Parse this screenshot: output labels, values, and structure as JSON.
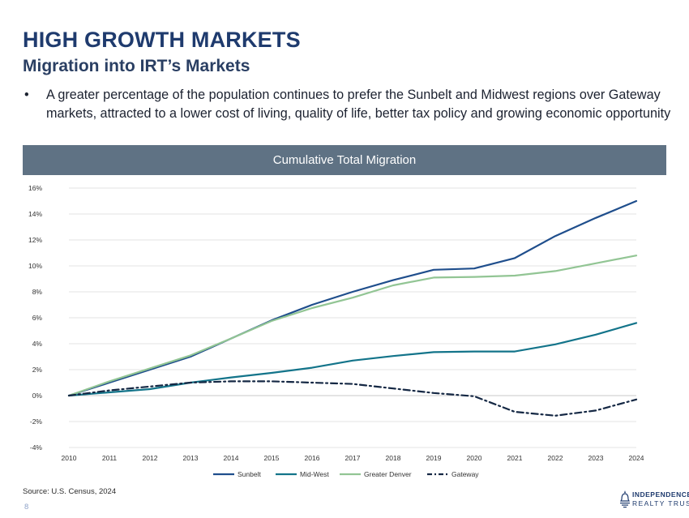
{
  "header": {
    "title": "HIGH GROWTH MARKETS",
    "subtitle": "Migration into IRT’s Markets",
    "bullet_symbol": "•",
    "bullet_text": "A greater percentage of the population continues to prefer the Sunbelt and Midwest regions over Gateway markets, attracted to a lower cost of living, quality of life, better tax policy and growing economic opportunity"
  },
  "chart_data": {
    "type": "line",
    "title": "Cumulative Total Migration",
    "xlabel": "",
    "ylabel": "",
    "categories": [
      "2010",
      "2011",
      "2012",
      "2013",
      "2014",
      "2015",
      "2016",
      "2017",
      "2018",
      "2019",
      "2020",
      "2021",
      "2022",
      "2023",
      "2024"
    ],
    "ylim": [
      -4,
      16
    ],
    "yticks": [
      -4,
      -2,
      0,
      2,
      4,
      6,
      8,
      10,
      12,
      14,
      16
    ],
    "ytick_labels": [
      "-4%",
      "-2%",
      "0%",
      "2%",
      "4%",
      "6%",
      "8%",
      "10%",
      "12%",
      "14%",
      "16%"
    ],
    "grid": true,
    "legend_position": "bottom",
    "series": [
      {
        "name": "Sunbelt",
        "color": "#1f4e8c",
        "dashed": false,
        "values": [
          0,
          1.0,
          2.0,
          3.0,
          4.4,
          5.8,
          7.0,
          8.0,
          8.9,
          9.7,
          9.8,
          10.6,
          12.3,
          13.7,
          15.0
        ]
      },
      {
        "name": "Mid-West",
        "color": "#13748a",
        "dashed": false,
        "values": [
          0,
          0.25,
          0.5,
          1.0,
          1.4,
          1.75,
          2.15,
          2.7,
          3.05,
          3.35,
          3.4,
          3.4,
          3.95,
          4.7,
          5.6
        ]
      },
      {
        "name": "Greater Denver",
        "color": "#92c594",
        "dashed": false,
        "values": [
          0,
          1.1,
          2.1,
          3.1,
          4.4,
          5.75,
          6.75,
          7.55,
          8.5,
          9.1,
          9.15,
          9.25,
          9.6,
          10.2,
          10.8
        ]
      },
      {
        "name": "Gateway",
        "color": "#152844",
        "dashed": true,
        "values": [
          0,
          0.4,
          0.7,
          1.0,
          1.1,
          1.1,
          1.0,
          0.9,
          0.55,
          0.2,
          -0.05,
          -1.25,
          -1.55,
          -1.15,
          -0.3
        ]
      }
    ]
  },
  "footer": {
    "source": "Source: U.S. Census, 2024",
    "page_number": "8",
    "logo_line1": "INDEPENDENCE",
    "logo_line2": "REALTY TRUST"
  }
}
